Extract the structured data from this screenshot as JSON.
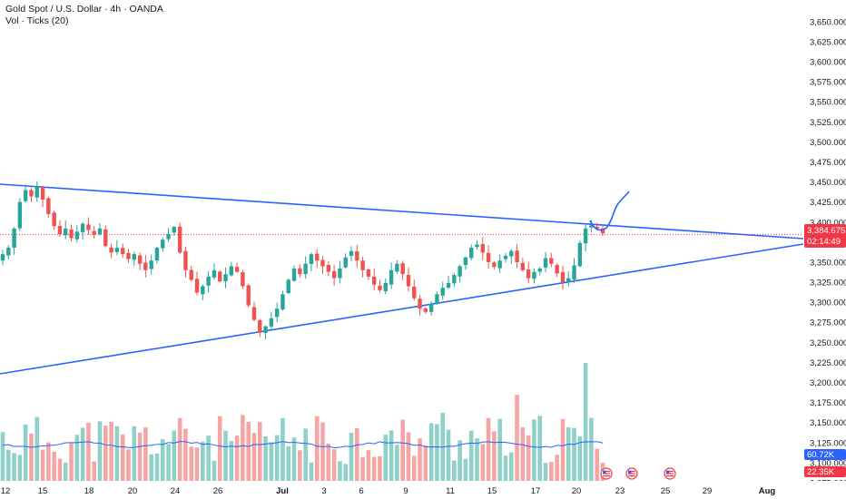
{
  "legend": {
    "symbol_line": "Gold Spot / U.S. Dollar · 4h · OANDA",
    "indicator_line": "Vol · Ticks (20)"
  },
  "colors": {
    "up": "#26a69a",
    "down": "#ef5350",
    "vol_up": "#8fd0c9",
    "vol_down": "#f4a6a4",
    "trendline": "#2962ff",
    "vol_ma": "#2962ff",
    "price_badge": "#f23645",
    "vol_badge_up": "#2962ff",
    "vol_badge_down": "#f23645",
    "current_line": "#f23645"
  },
  "price_axis": {
    "min": 3075,
    "max": 3660,
    "ticks": [
      "3,650.000",
      "3,625.000",
      "3,600.000",
      "3,575.000",
      "3,550.000",
      "3,525.000",
      "3,500.000",
      "3,475.000",
      "3,450.000",
      "3,425.000",
      "3,400.000",
      "3,375.000",
      "3,350.000",
      "3,325.000",
      "3,300.000",
      "3,275.000",
      "3,250.000",
      "3,225.000",
      "3,200.000",
      "3,175.000",
      "3,150.000",
      "3,125.000",
      "3,100.000",
      "3,075.000"
    ],
    "tick_values": [
      3650,
      3625,
      3600,
      3575,
      3550,
      3525,
      3500,
      3475,
      3450,
      3425,
      3400,
      3375,
      3350,
      3325,
      3300,
      3275,
      3250,
      3225,
      3200,
      3175,
      3150,
      3125,
      3100,
      3075
    ]
  },
  "time_axis": {
    "labels": [
      {
        "text": "12",
        "bold": false
      },
      {
        "text": "15",
        "bold": false
      },
      {
        "text": "18",
        "bold": false
      },
      {
        "text": "20",
        "bold": false
      },
      {
        "text": "24",
        "bold": false
      },
      {
        "text": "26",
        "bold": false
      },
      {
        "text": "Jul",
        "bold": true
      },
      {
        "text": "3",
        "bold": false
      },
      {
        "text": "6",
        "bold": false
      },
      {
        "text": "9",
        "bold": false
      },
      {
        "text": "11",
        "bold": false
      },
      {
        "text": "15",
        "bold": false
      },
      {
        "text": "17",
        "bold": false
      },
      {
        "text": "20",
        "bold": false
      },
      {
        "text": "23",
        "bold": false
      },
      {
        "text": "25",
        "bold": false
      },
      {
        "text": "29",
        "bold": false
      },
      {
        "text": "Aug",
        "bold": true
      }
    ]
  },
  "badges": {
    "price": "3,384.675",
    "countdown": "02:14:49",
    "vol_ma": "60.72K",
    "vol_last": "22.35K"
  },
  "chart_data": {
    "type": "candlestick",
    "title": "Gold Spot / U.S. Dollar · 4h · OANDA",
    "ylim": [
      3075,
      3660
    ],
    "last_price": 3384.675,
    "series_close": [
      3360,
      3368,
      3392,
      3425,
      3440,
      3432,
      3445,
      3428,
      3410,
      3395,
      3385,
      3392,
      3380,
      3388,
      3398,
      3390,
      3384,
      3392,
      3370,
      3362,
      3368,
      3360,
      3354,
      3360,
      3348,
      3340,
      3352,
      3368,
      3378,
      3385,
      3394,
      3362,
      3340,
      3328,
      3312,
      3320,
      3332,
      3340,
      3326,
      3335,
      3345,
      3338,
      3320,
      3296,
      3278,
      3262,
      3270,
      3280,
      3292,
      3310,
      3328,
      3342,
      3335,
      3348,
      3360,
      3352,
      3345,
      3338,
      3330,
      3342,
      3356,
      3364,
      3352,
      3340,
      3332,
      3322,
      3315,
      3324,
      3340,
      3348,
      3335,
      3320,
      3305,
      3292,
      3288,
      3298,
      3310,
      3318,
      3324,
      3334,
      3345,
      3356,
      3368,
      3372,
      3362,
      3350,
      3344,
      3352,
      3358,
      3364,
      3350,
      3340,
      3330,
      3338,
      3342,
      3355,
      3348,
      3336,
      3325,
      3330,
      3346,
      3374,
      3392,
      3396,
      3392,
      3386
    ],
    "trendlines": [
      {
        "name": "upper",
        "from": {
          "date": "Jun 12",
          "price": 3440
        },
        "to": {
          "date": "Jul 23+",
          "price": 3372
        }
      },
      {
        "name": "lower",
        "from": {
          "date": "Jun 11",
          "price": 3206
        },
        "to": {
          "date": "Jul 23+",
          "price": 3366
        }
      }
    ],
    "volume": {
      "ma_value": "60.72K",
      "last_value": "22.35K"
    }
  }
}
